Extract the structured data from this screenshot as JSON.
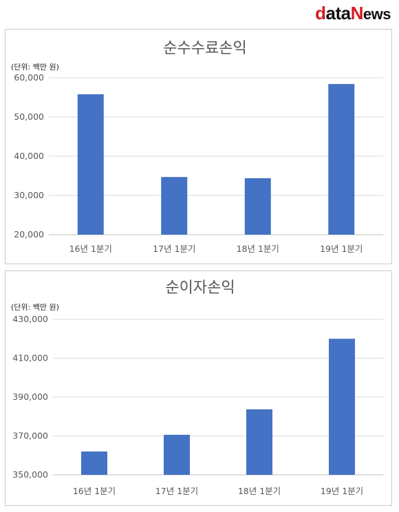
{
  "brand": {
    "name": "dataNews",
    "accent": "#d71921"
  },
  "chart_data": [
    {
      "type": "bar",
      "title": "순수수료손익",
      "unit_label": "(단위: 백만 원)",
      "categories": [
        "16년 1분기",
        "17년 1분기",
        "18년 1분기",
        "19년 1분기"
      ],
      "values": [
        55800,
        34700,
        34400,
        58400
      ],
      "ylim": [
        20000,
        60000
      ],
      "yticks": [
        20000,
        30000,
        40000,
        50000,
        60000
      ],
      "ytick_labels": [
        "20,000",
        "30,000",
        "40,000",
        "50,000",
        "60,000"
      ],
      "grid": true,
      "bar_color": "#4472c4"
    },
    {
      "type": "bar",
      "title": "순이자손익",
      "unit_label": "(단위: 백만 원)",
      "categories": [
        "16년 1분기",
        "17년 1분기",
        "18년 1분기",
        "19년 1분기"
      ],
      "values": [
        362000,
        370600,
        383700,
        420000
      ],
      "ylim": [
        350000,
        430000
      ],
      "yticks": [
        350000,
        370000,
        390000,
        410000,
        430000
      ],
      "ytick_labels": [
        "350,000",
        "370,000",
        "390,000",
        "410,000",
        "430,000"
      ],
      "grid": true,
      "bar_color": "#4472c4"
    }
  ]
}
